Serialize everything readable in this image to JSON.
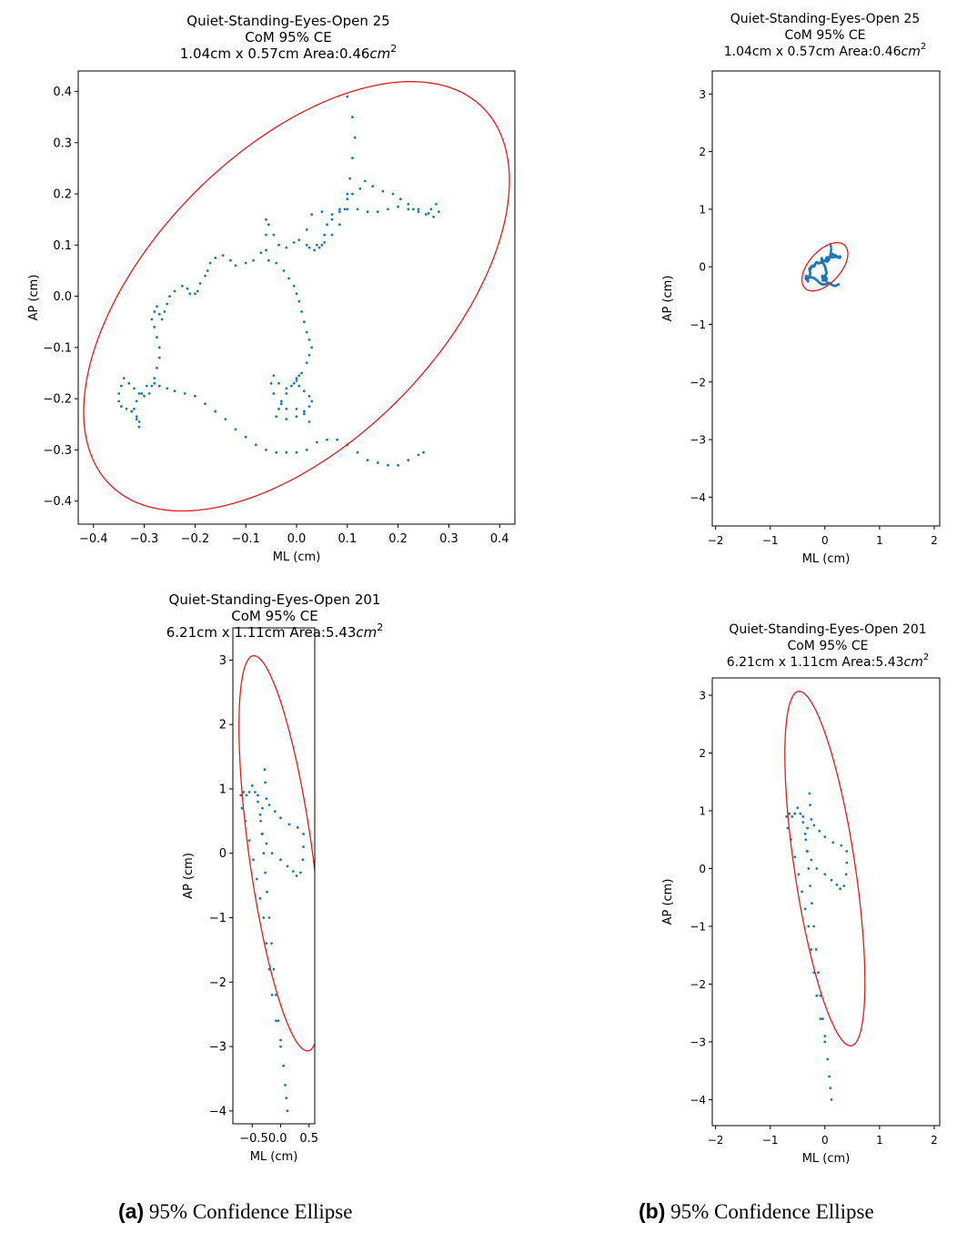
{
  "captions": {
    "a": {
      "tag": "(a)",
      "text": "95% Confidence Ellipse"
    },
    "b": {
      "tag": "(b)",
      "text": "95% Confidence Ellipse"
    }
  },
  "colors": {
    "trace": "#1f77b4",
    "ellipse": "#e41a1c",
    "axes": "#000000"
  },
  "chart_data": [
    {
      "id": "a-top",
      "type": "scatter",
      "title": [
        "Quiet-Standing-Eyes-Open 25",
        "CoM 95% CE"
      ],
      "area_line": {
        "prefix": "1.04cm x 0.57cm Area:0.46",
        "unit": "cm",
        "exp": "2"
      },
      "xlabel": "ML (cm)",
      "ylabel": "AP (cm)",
      "xlim": [
        -0.43,
        0.43
      ],
      "ylim": [
        -0.445,
        0.44
      ],
      "xticks": [
        -0.4,
        -0.3,
        -0.2,
        -0.1,
        0.0,
        0.1,
        0.2,
        0.3,
        0.4
      ],
      "xticklabels": [
        "−0.4",
        "−0.3",
        "−0.2",
        "−0.1",
        "0.0",
        "0.1",
        "0.2",
        "0.3",
        "0.4"
      ],
      "yticks": [
        -0.4,
        -0.3,
        -0.2,
        -0.1,
        0.0,
        0.1,
        0.2,
        0.3,
        0.4
      ],
      "yticklabels": [
        "−0.4",
        "−0.3",
        "−0.2",
        "−0.1",
        "0.0",
        "0.1",
        "0.2",
        "0.3",
        "0.4"
      ],
      "ellipse": {
        "cx": 0.0,
        "cy": 0.0,
        "rx": 0.52,
        "ry": 0.285,
        "angle_deg": 45
      },
      "trace": [
        [
          0.1,
          0.39
        ],
        [
          0.11,
          0.35
        ],
        [
          0.115,
          0.31
        ],
        [
          0.11,
          0.27
        ],
        [
          0.105,
          0.23
        ],
        [
          0.1,
          0.2
        ],
        [
          0.095,
          0.17
        ],
        [
          0.085,
          0.14
        ],
        [
          0.07,
          0.12
        ],
        [
          0.055,
          0.105
        ],
        [
          0.04,
          0.1
        ],
        [
          0.025,
          0.095
        ],
        [
          0.02,
          0.13
        ],
        [
          0.03,
          0.16
        ],
        [
          0.05,
          0.165
        ],
        [
          0.07,
          0.15
        ],
        [
          0.085,
          0.17
        ],
        [
          0.1,
          0.19
        ],
        [
          0.11,
          0.2
        ],
        [
          0.125,
          0.21
        ],
        [
          0.135,
          0.225
        ],
        [
          0.15,
          0.215
        ],
        [
          0.17,
          0.205
        ],
        [
          0.19,
          0.2
        ],
        [
          0.205,
          0.19
        ],
        [
          0.22,
          0.17
        ],
        [
          0.23,
          0.17
        ],
        [
          0.24,
          0.165
        ],
        [
          0.255,
          0.16
        ],
        [
          0.265,
          0.17
        ],
        [
          0.275,
          0.18
        ],
        [
          0.28,
          0.165
        ],
        [
          0.27,
          0.155
        ],
        [
          0.26,
          0.162
        ],
        [
          0.24,
          0.17
        ],
        [
          0.22,
          0.18
        ],
        [
          0.2,
          0.175
        ],
        [
          0.18,
          0.17
        ],
        [
          0.16,
          0.165
        ],
        [
          0.14,
          0.165
        ],
        [
          0.12,
          0.17
        ],
        [
          0.1,
          0.17
        ],
        [
          0.085,
          0.165
        ],
        [
          0.07,
          0.16
        ],
        [
          0.06,
          0.14
        ],
        [
          0.055,
          0.12
        ],
        [
          0.05,
          0.1
        ],
        [
          0.045,
          0.095
        ],
        [
          0.035,
          0.09
        ],
        [
          0.02,
          0.1
        ],
        [
          0.005,
          0.11
        ],
        [
          -0.005,
          0.105
        ],
        [
          -0.02,
          0.095
        ],
        [
          -0.035,
          0.1
        ],
        [
          -0.045,
          0.12
        ],
        [
          -0.055,
          0.14
        ],
        [
          -0.06,
          0.15
        ],
        [
          -0.06,
          0.12
        ],
        [
          -0.06,
          0.09
        ],
        [
          -0.055,
          0.07
        ],
        [
          -0.04,
          0.065
        ],
        [
          -0.025,
          0.05
        ],
        [
          -0.015,
          0.035
        ],
        [
          -0.005,
          0.02
        ],
        [
          0.0,
          0.005
        ],
        [
          0.005,
          -0.01
        ],
        [
          0.01,
          -0.03
        ],
        [
          0.015,
          -0.05
        ],
        [
          0.02,
          -0.07
        ],
        [
          0.025,
          -0.085
        ],
        [
          0.03,
          -0.1
        ],
        [
          0.025,
          -0.115
        ],
        [
          0.02,
          -0.13
        ],
        [
          0.01,
          -0.15
        ],
        [
          0.0,
          -0.16
        ],
        [
          -0.01,
          -0.175
        ],
        [
          -0.02,
          -0.19
        ],
        [
          -0.03,
          -0.205
        ],
        [
          -0.035,
          -0.22
        ],
        [
          -0.04,
          -0.235
        ],
        [
          -0.02,
          -0.24
        ],
        [
          0.0,
          -0.235
        ],
        [
          0.015,
          -0.225
        ],
        [
          0.025,
          -0.215
        ],
        [
          0.03,
          -0.205
        ],
        [
          0.025,
          -0.195
        ],
        [
          0.015,
          -0.185
        ],
        [
          0.005,
          -0.175
        ],
        [
          0.0,
          -0.165
        ],
        [
          0.005,
          -0.155
        ],
        [
          -0.005,
          -0.17
        ],
        [
          -0.02,
          -0.18
        ],
        [
          -0.035,
          -0.17
        ],
        [
          -0.045,
          -0.155
        ],
        [
          -0.05,
          -0.17
        ],
        [
          -0.045,
          -0.19
        ],
        [
          -0.03,
          -0.21
        ],
        [
          -0.02,
          -0.22
        ],
        [
          0.0,
          -0.22
        ],
        [
          0.015,
          -0.23
        ],
        [
          0.025,
          -0.245
        ],
        [
          -0.07,
          0.085
        ],
        [
          -0.085,
          0.07
        ],
        [
          -0.1,
          0.065
        ],
        [
          -0.12,
          0.06
        ],
        [
          -0.13,
          0.07
        ],
        [
          -0.145,
          0.08
        ],
        [
          -0.16,
          0.075
        ],
        [
          -0.17,
          0.065
        ],
        [
          -0.175,
          0.05
        ],
        [
          -0.18,
          0.04
        ],
        [
          -0.19,
          0.025
        ],
        [
          -0.195,
          0.01
        ],
        [
          -0.2,
          0.005
        ],
        [
          -0.21,
          0.005
        ],
        [
          -0.215,
          0.015
        ],
        [
          -0.225,
          0.02
        ],
        [
          -0.24,
          0.01
        ],
        [
          -0.25,
          0.0
        ],
        [
          -0.255,
          -0.015
        ],
        [
          -0.26,
          -0.03
        ],
        [
          -0.265,
          -0.045
        ],
        [
          -0.27,
          -0.035
        ],
        [
          -0.275,
          -0.02
        ],
        [
          -0.28,
          -0.03
        ],
        [
          -0.285,
          -0.045
        ],
        [
          -0.28,
          -0.06
        ],
        [
          -0.275,
          -0.08
        ],
        [
          -0.27,
          -0.1
        ],
        [
          -0.27,
          -0.12
        ],
        [
          -0.275,
          -0.14
        ],
        [
          -0.28,
          -0.16
        ],
        [
          -0.285,
          -0.175
        ],
        [
          -0.29,
          -0.19
        ],
        [
          -0.3,
          -0.195
        ],
        [
          -0.31,
          -0.19
        ],
        [
          -0.32,
          -0.18
        ],
        [
          -0.33,
          -0.17
        ],
        [
          -0.34,
          -0.16
        ],
        [
          -0.345,
          -0.175
        ],
        [
          -0.35,
          -0.19
        ],
        [
          -0.35,
          -0.205
        ],
        [
          -0.345,
          -0.215
        ],
        [
          -0.335,
          -0.22
        ],
        [
          -0.325,
          -0.225
        ],
        [
          -0.315,
          -0.235
        ],
        [
          -0.31,
          -0.245
        ],
        [
          -0.31,
          -0.255
        ],
        [
          -0.315,
          -0.24
        ],
        [
          -0.32,
          -0.22
        ],
        [
          -0.315,
          -0.205
        ],
        [
          -0.305,
          -0.19
        ],
        [
          -0.295,
          -0.175
        ],
        [
          -0.28,
          -0.17
        ],
        [
          -0.27,
          -0.175
        ],
        [
          -0.255,
          -0.18
        ],
        [
          -0.24,
          -0.185
        ],
        [
          -0.22,
          -0.19
        ],
        [
          -0.2,
          -0.195
        ],
        [
          -0.18,
          -0.21
        ],
        [
          -0.16,
          -0.225
        ],
        [
          -0.14,
          -0.24
        ],
        [
          -0.12,
          -0.26
        ],
        [
          -0.1,
          -0.275
        ],
        [
          -0.08,
          -0.29
        ],
        [
          -0.06,
          -0.3
        ],
        [
          -0.04,
          -0.305
        ],
        [
          -0.02,
          -0.305
        ],
        [
          0.0,
          -0.305
        ],
        [
          0.02,
          -0.3
        ],
        [
          0.04,
          -0.285
        ],
        [
          0.06,
          -0.28
        ],
        [
          0.08,
          -0.28
        ],
        [
          0.1,
          -0.29
        ],
        [
          0.12,
          -0.305
        ],
        [
          0.14,
          -0.32
        ],
        [
          0.16,
          -0.325
        ],
        [
          0.18,
          -0.33
        ],
        [
          0.2,
          -0.33
        ],
        [
          0.22,
          -0.32
        ],
        [
          0.24,
          -0.31
        ],
        [
          0.25,
          -0.305
        ]
      ]
    },
    {
      "id": "a-bottom",
      "type": "scatter",
      "title": [
        "Quiet-Standing-Eyes-Open 201",
        "CoM 95% CE"
      ],
      "area_line": {
        "prefix": "6.21cm x 1.11cm Area:5.43",
        "unit": "cm",
        "exp": "2"
      },
      "xlabel": "ML (cm)",
      "ylabel": "AP (cm)",
      "xlim": [
        -0.84,
        0.6
      ],
      "ylim": [
        -4.2,
        3.5
      ],
      "xticks": [
        -0.5,
        0.0,
        0.5
      ],
      "xticklabels": [
        "−0.50.0",
        "",
        "0.5"
      ],
      "yticks": [
        -4,
        -3,
        -2,
        -1,
        0,
        1,
        2,
        3
      ],
      "yticklabels": [
        "−4",
        "−3",
        "−2",
        "−1",
        "0",
        "1",
        "2",
        "3"
      ],
      "ellipse": {
        "cx": 0.0,
        "cy": 0.0,
        "rx": 3.105,
        "ry": 0.555,
        "angle_deg": -81
      },
      "trace": [
        [
          -0.28,
          1.3
        ],
        [
          -0.27,
          1.1
        ],
        [
          -0.25,
          0.85
        ],
        [
          -0.2,
          0.75
        ],
        [
          -0.1,
          0.65
        ],
        [
          0.0,
          0.55
        ],
        [
          0.15,
          0.45
        ],
        [
          0.3,
          0.4
        ],
        [
          0.4,
          0.3
        ],
        [
          0.4,
          0.1
        ],
        [
          0.39,
          -0.1
        ],
        [
          0.35,
          -0.3
        ],
        [
          0.28,
          -0.35
        ],
        [
          0.22,
          -0.28
        ],
        [
          0.12,
          -0.2
        ],
        [
          0.0,
          -0.1
        ],
        [
          -0.15,
          0.0
        ],
        [
          -0.25,
          0.15
        ],
        [
          -0.33,
          0.3
        ],
        [
          -0.35,
          0.5
        ],
        [
          -0.32,
          0.7
        ],
        [
          -0.4,
          0.8
        ],
        [
          -0.45,
          0.95
        ],
        [
          -0.5,
          1.05
        ],
        [
          -0.55,
          0.95
        ],
        [
          -0.6,
          0.9
        ],
        [
          -0.65,
          0.95
        ],
        [
          -0.7,
          0.9
        ],
        [
          -0.68,
          0.7
        ],
        [
          -0.62,
          0.5
        ],
        [
          -0.55,
          0.2
        ],
        [
          -0.48,
          -0.1
        ],
        [
          -0.42,
          -0.4
        ],
        [
          -0.36,
          -0.7
        ],
        [
          -0.3,
          -1.0
        ],
        [
          -0.25,
          -1.4
        ],
        [
          -0.2,
          -1.8
        ],
        [
          -0.15,
          -2.2
        ],
        [
          -0.08,
          -2.6
        ],
        [
          0.0,
          -3.0
        ],
        [
          0.05,
          -3.3
        ],
        [
          0.08,
          -3.6
        ],
        [
          0.1,
          -3.8
        ],
        [
          0.12,
          -4.0
        ],
        [
          -0.4,
          0.9
        ],
        [
          -0.36,
          0.6
        ],
        [
          -0.32,
          0.3
        ],
        [
          -0.3,
          0.0
        ],
        [
          -0.27,
          -0.3
        ],
        [
          -0.24,
          -0.6
        ],
        [
          -0.2,
          -1.0
        ],
        [
          -0.16,
          -1.4
        ],
        [
          -0.12,
          -1.8
        ],
        [
          -0.08,
          -2.2
        ],
        [
          -0.04,
          -2.6
        ],
        [
          0.0,
          -2.9
        ]
      ]
    },
    {
      "id": "b-top",
      "type": "scatter",
      "title": [
        "Quiet-Standing-Eyes-Open 25",
        "CoM 95% CE"
      ],
      "area_line": {
        "prefix": "1.04cm x 0.57cm Area:0.46",
        "unit": "cm",
        "exp": "2"
      },
      "xlabel": "ML (cm)",
      "ylabel": "AP (cm)",
      "xlim": [
        -2.06,
        2.1
      ],
      "ylim": [
        -4.5,
        3.4
      ],
      "xticks": [
        -2,
        -1,
        0,
        1,
        2
      ],
      "xticklabels": [
        "−2",
        "−1",
        "0",
        "1",
        "2"
      ],
      "yticks": [
        -4,
        -3,
        -2,
        -1,
        0,
        1,
        2,
        3
      ],
      "yticklabels": [
        "−4",
        "−3",
        "−2",
        "−1",
        "0",
        "1",
        "2",
        "3"
      ],
      "ellipse": {
        "cx": 0.0,
        "cy": 0.0,
        "rx": 0.52,
        "ry": 0.285,
        "angle_deg": 45
      },
      "trace_ref": "a-top"
    },
    {
      "id": "b-bottom",
      "type": "scatter",
      "title": [
        "Quiet-Standing-Eyes-Open 201",
        "CoM 95% CE"
      ],
      "area_line": {
        "prefix": "6.21cm x 1.11cm Area:5.43",
        "unit": "cm",
        "exp": "2"
      },
      "xlabel": "ML (cm)",
      "ylabel": "AP (cm)",
      "xlim": [
        -2.06,
        2.1
      ],
      "ylim": [
        -4.45,
        3.3
      ],
      "xticks": [
        -2,
        -1,
        0,
        1,
        2
      ],
      "xticklabels": [
        "−2",
        "−1",
        "0",
        "1",
        "2"
      ],
      "yticks": [
        -4,
        -3,
        -2,
        -1,
        0,
        1,
        2,
        3
      ],
      "yticklabels": [
        "−4",
        "−3",
        "−2",
        "−1",
        "0",
        "1",
        "2",
        "3"
      ],
      "ellipse": {
        "cx": 0.0,
        "cy": 0.0,
        "rx": 3.105,
        "ry": 0.555,
        "angle_deg": -81
      },
      "trace_ref": "a-bottom"
    }
  ]
}
